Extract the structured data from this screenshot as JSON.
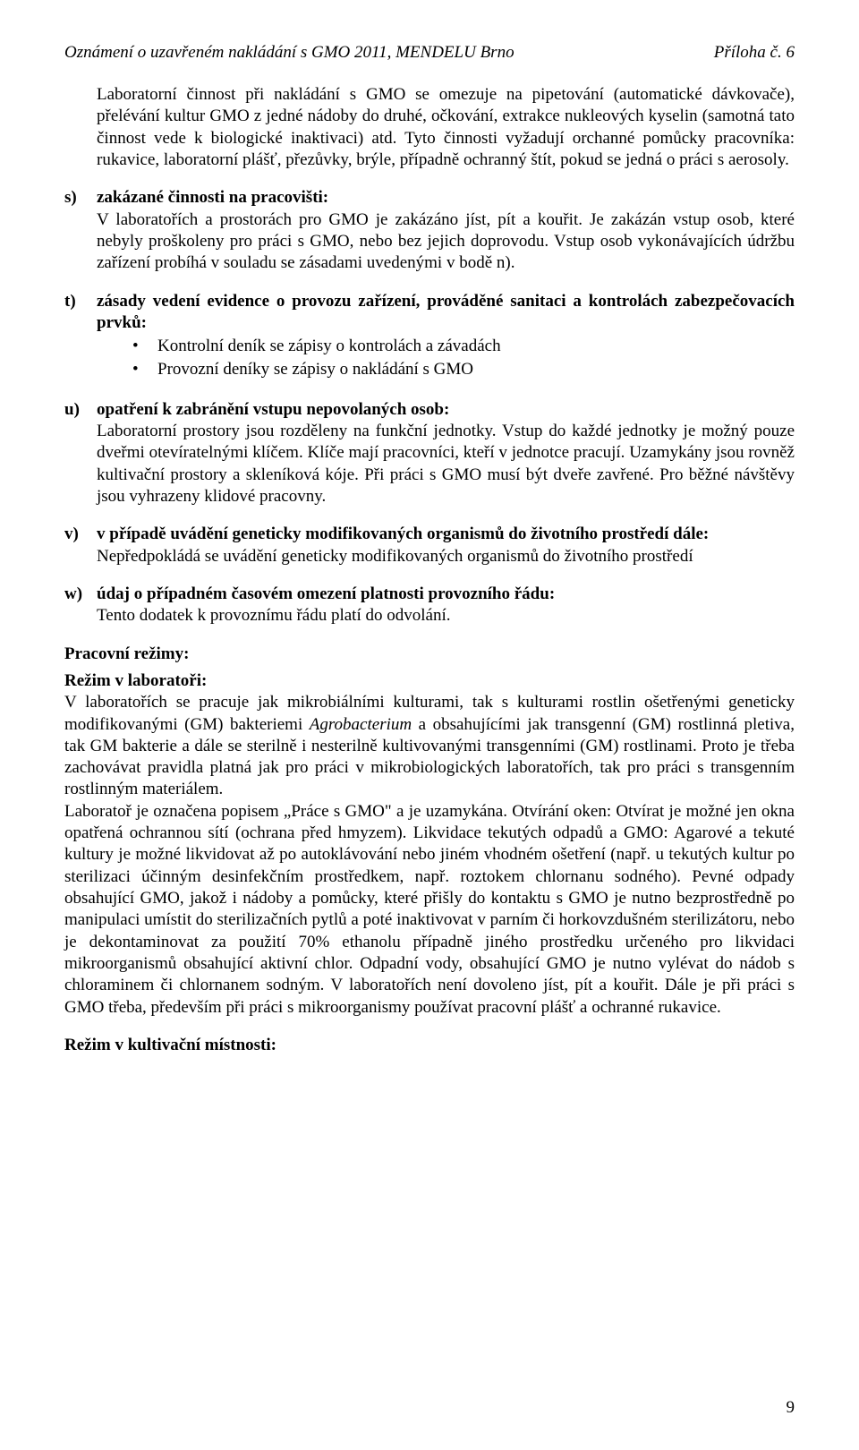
{
  "header": {
    "left": "Oznámení o uzavřeném nakládání s GMO 2011, MENDELU Brno",
    "right": "Příloha č. 6"
  },
  "intro_para": "Laboratorní činnost při nakládání s GMO se omezuje na pipetování (automatické dávkovače), přelévání kultur GMO z jedné nádoby do druhé, očkování, extrakce nukleových kyselin (samotná tato činnost vede k biologické inaktivaci) atd. Tyto činnosti vyžadují orchanné pomůcky pracovníka: rukavice, laboratorní plášť, přezůvky, brýle, případně ochranný štít, pokud se jedná o práci s aerosoly.",
  "items": {
    "s": {
      "marker": "s)",
      "title": "zakázané činnosti na pracovišti:",
      "body": "V laboratořích a prostorách pro GMO je zakázáno jíst, pít a kouřit. Je zakázán vstup osob, které nebyly proškoleny pro práci s GMO, nebo bez jejich doprovodu. Vstup osob vykonávajících údržbu zařízení probíhá v souladu se zásadami uvedenými v bodě n)."
    },
    "t": {
      "marker": "t)",
      "title": "zásady vedení evidence o provozu zařízení, prováděné sanitaci a kontrolách zabezpečovacích prvků:",
      "bullets": [
        "Kontrolní deník se zápisy o kontrolách a závadách",
        "Provozní deníky se zápisy o nakládání s GMO"
      ]
    },
    "u": {
      "marker": "u)",
      "title": "opatření k zabránění vstupu nepovolaných osob:",
      "body": "Laboratorní prostory jsou rozděleny na funkční jednotky. Vstup do každé jednotky je možný pouze dveřmi otevíratelnými klíčem. Klíče mají pracovníci, kteří v jednotce pracují. Uzamykány jsou rovněž kultivační prostory a skleníková kóje. Při práci s GMO musí být dveře zavřené. Pro běžné návštěvy jsou vyhrazeny klidové pracovny."
    },
    "v": {
      "marker": "v)",
      "title": "v případě uvádění geneticky modifikovaných organismů do životního prostředí dále:",
      "body": "Nepředpokládá se uvádění geneticky modifikovaných organismů do životního prostředí"
    },
    "w": {
      "marker": "w)",
      "title": "údaj o případném časovém omezení platnosti provozního řádu:",
      "body": "Tento dodatek k provoznímu řádu platí do odvolání."
    }
  },
  "regimes": {
    "main_head": "Pracovní režimy:",
    "lab_head": "Režim v laboratoři:",
    "lab_body_pre": "V laboratořích se pracuje jak mikrobiálními kulturami, tak s kulturami rostlin ošetřenými geneticky modifikovanými (GM) bakteriemi ",
    "lab_body_italic": "Agrobacterium",
    "lab_body_post": " a obsahujícími jak transgenní (GM) rostlinná pletiva, tak GM bakterie a dále se sterilně i nesterilně kultivovanými transgenními (GM) rostlinami. Proto je třeba zachovávat pravidla platná jak pro práci v mikrobiologických laboratořích, tak pro práci s transgenním rostlinným materiálem.",
    "lab_body2": "Laboratoř je označena popisem „Práce s GMO\" a je uzamykána. Otvírání oken: Otvírat je možné jen okna opatřená ochrannou sítí (ochrana před hmyzem). Likvidace tekutých odpadů a GMO: Agarové a tekuté kultury je možné likvidovat až po autoklávování nebo jiném vhodném ošetření (např. u tekutých kultur po sterilizaci účinným desinfekčním prostředkem, např. roztokem chlornanu sodného). Pevné odpady obsahující GMO, jakož i nádoby a pomůcky, které přišly do kontaktu s GMO je nutno bezprostředně po manipulaci umístit do sterilizačních pytlů a poté inaktivovat v parním či horkovzdušném sterilizátoru, nebo je dekontaminovat za použití 70% ethanolu případně jiného prostředku určeného pro likvidaci mikroorganismů obsahující aktivní chlor. Odpadní vody, obsahující GMO je nutno vylévat do nádob s chloraminem či chlornanem sodným. V laboratořích není dovoleno jíst, pít a kouřit. Dále je při práci s GMO třeba, především při práci s mikroorganismy používat pracovní plášť a ochranné rukavice.",
    "cult_head": "Režim v kultivační místnosti:"
  },
  "page_number": "9"
}
